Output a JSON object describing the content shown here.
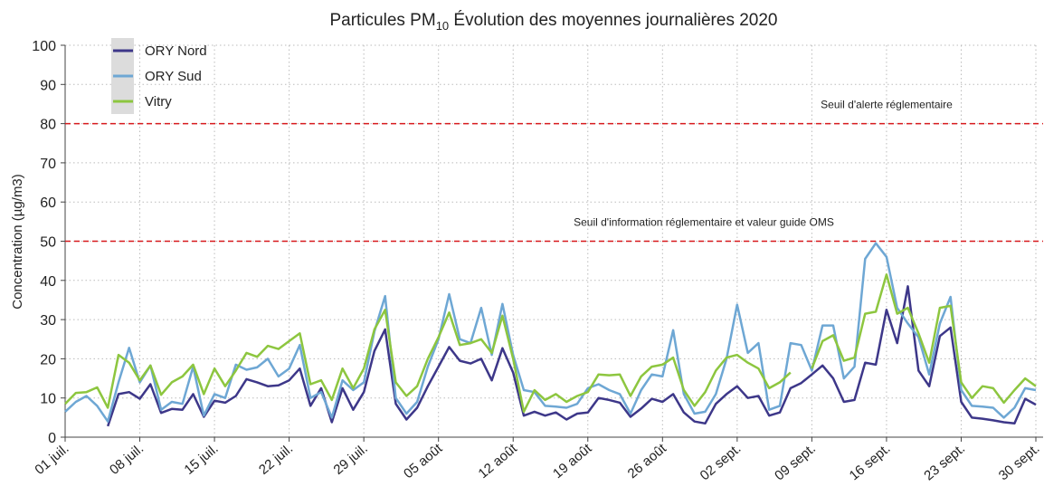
{
  "chart_data": {
    "type": "line",
    "title": [
      "Particules PM",
      "10",
      " Évolution des moyennes journalières 2020"
    ],
    "y_label": "Concentration (µg/m3)",
    "categories": [
      "01 juil.",
      null,
      null,
      null,
      null,
      null,
      null,
      "08 juil.",
      null,
      null,
      null,
      null,
      null,
      null,
      "15 juil.",
      null,
      null,
      null,
      null,
      null,
      null,
      "22 juil.",
      null,
      null,
      null,
      null,
      null,
      null,
      "29 juil.",
      null,
      null,
      null,
      null,
      null,
      null,
      "05 août",
      null,
      null,
      null,
      null,
      null,
      null,
      "12 août",
      null,
      null,
      null,
      null,
      null,
      null,
      "19 août",
      null,
      null,
      null,
      null,
      null,
      null,
      "26 août",
      null,
      null,
      null,
      null,
      null,
      null,
      "02 sept.",
      null,
      null,
      null,
      null,
      null,
      null,
      "09 sept.",
      null,
      null,
      null,
      null,
      null,
      null,
      "16 sept.",
      null,
      null,
      null,
      null,
      null,
      null,
      "23 sept.",
      null,
      null,
      null,
      null,
      null,
      null,
      "30 sept."
    ],
    "series": [
      {
        "name": "ORY Nord",
        "color": "#3d3789",
        "values": [
          null,
          null,
          null,
          null,
          2.8,
          11,
          11.5,
          9.8,
          13.5,
          6.2,
          7.2,
          7,
          11,
          5.2,
          9.3,
          8.8,
          10.5,
          14.8,
          14,
          13,
          13.2,
          14.5,
          17.5,
          8,
          12.5,
          3.8,
          12.5,
          7,
          11.5,
          22,
          27.5,
          8.5,
          4.5,
          7.5,
          13,
          18,
          23,
          19.5,
          18.8,
          20,
          14.5,
          22.7,
          16.5,
          5.5,
          6.5,
          5.5,
          6.3,
          4.5,
          6,
          6.3,
          10,
          9.5,
          8.8,
          5.2,
          7.3,
          9.8,
          9,
          11,
          6.3,
          4,
          3.5,
          8.5,
          11,
          13,
          10,
          10.5,
          5.5,
          6.3,
          12.5,
          13.8,
          16,
          18.3,
          15,
          9,
          9.5,
          19,
          18.5,
          32.5,
          24,
          38.5,
          17,
          13,
          25.8,
          28,
          9,
          5,
          4.7,
          4.3,
          3.8,
          3.5,
          9.8,
          8.3
        ]
      },
      {
        "name": "ORY Sud",
        "color": "#6ea7d4",
        "values": [
          6.5,
          9,
          10.5,
          8,
          4,
          14,
          22.8,
          14,
          18.3,
          7,
          9,
          8.5,
          18,
          5.5,
          11,
          10,
          18.5,
          17.2,
          17.8,
          20,
          15.5,
          17.5,
          23.5,
          10,
          11.5,
          5,
          14.5,
          12,
          14,
          27,
          36,
          10,
          6,
          9,
          18,
          25,
          36.5,
          25,
          24,
          33,
          21,
          34,
          21,
          12,
          11.5,
          8,
          7.8,
          7.5,
          8.5,
          12.5,
          13.5,
          12,
          11,
          6,
          12,
          16,
          15.5,
          27.3,
          11,
          6,
          6.5,
          11,
          20,
          33.8,
          21.5,
          24,
          7,
          8,
          24,
          23.5,
          17,
          28.5,
          28.5,
          15,
          18,
          45.5,
          49.5,
          46,
          33,
          29,
          25.5,
          16,
          29,
          35.8,
          12,
          8,
          7.8,
          7.5,
          5,
          7.5,
          12.5,
          12
        ]
      },
      {
        "name": "Vitry",
        "color": "#8dc63f",
        "values": [
          8.5,
          11.3,
          11.5,
          12.7,
          7.5,
          21,
          19,
          14.5,
          18.3,
          10.8,
          14,
          15.5,
          18.5,
          11,
          17.5,
          13,
          17,
          21.5,
          20.5,
          23.3,
          22.5,
          24.5,
          26.5,
          13.5,
          14.5,
          9.5,
          17.5,
          12.5,
          17.5,
          27.5,
          32.5,
          14,
          10.5,
          13,
          20,
          25.5,
          31.8,
          23.5,
          24,
          25,
          21.5,
          31,
          20,
          6.5,
          12,
          9.5,
          11,
          9,
          10.5,
          11.5,
          16,
          15.8,
          16,
          10.5,
          15.5,
          18,
          18.5,
          20.3,
          12,
          8,
          11.5,
          17,
          20.3,
          21,
          19,
          17.5,
          12.5,
          14,
          16.5,
          null,
          17.5,
          24.5,
          26,
          19.5,
          20.3,
          31.5,
          32,
          41.5,
          31.5,
          33,
          26.5,
          19,
          33,
          33.5,
          14,
          10,
          13,
          12.5,
          8.8,
          12,
          15,
          13
        ]
      }
    ],
    "thresholds": [
      {
        "value": 80,
        "label": "Seuil d'alerte réglementaire"
      },
      {
        "value": 50,
        "label": "Seuil d'information réglementaire et valeur guide OMS"
      }
    ],
    "threshold_color": "#d7191c",
    "ylim": [
      0,
      100
    ],
    "yticks": [
      0,
      10,
      20,
      30,
      40,
      50,
      60,
      70,
      80,
      90,
      100
    ],
    "grid": true,
    "legend": "upper left"
  }
}
